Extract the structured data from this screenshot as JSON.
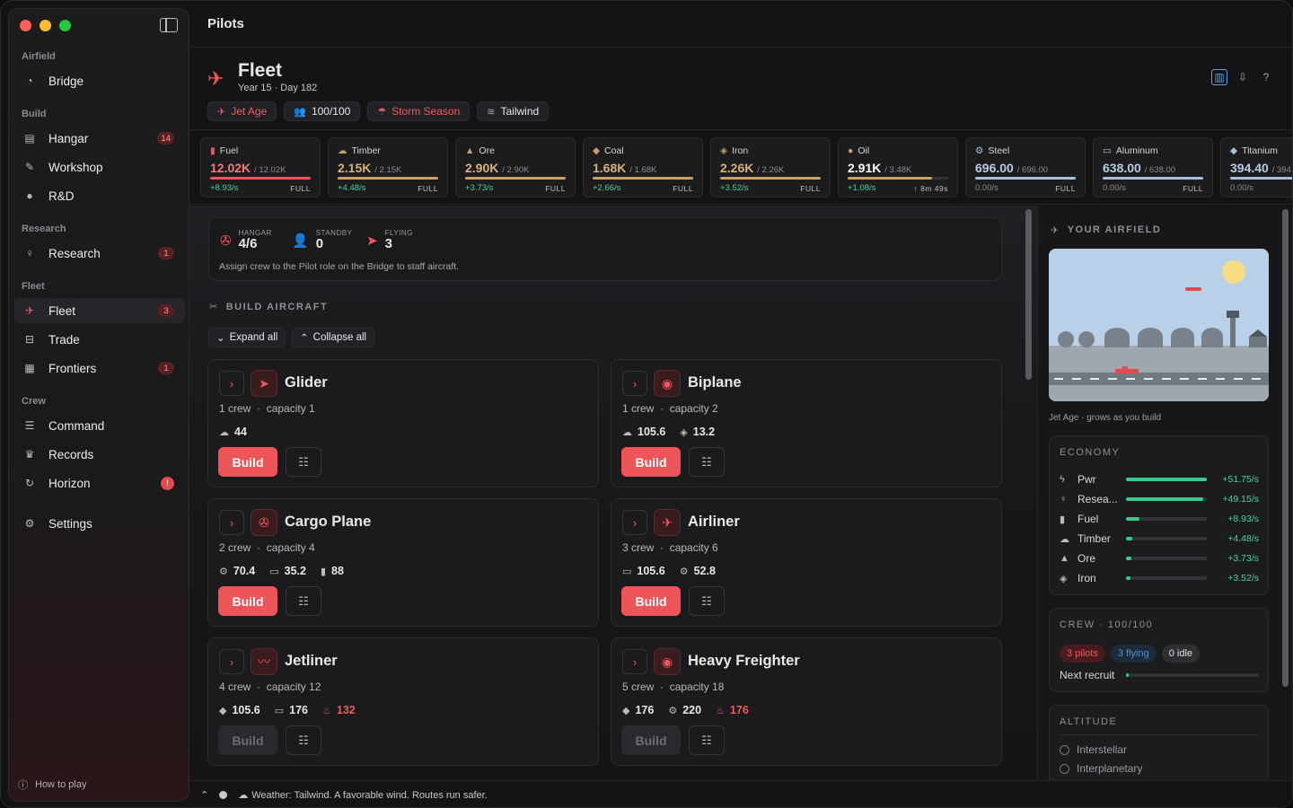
{
  "window": {
    "title": "Pilots"
  },
  "sidebar": {
    "sections": [
      {
        "label": "Airfield",
        "items": [
          {
            "label": "Bridge",
            "icon": "gauge-icon"
          }
        ]
      },
      {
        "label": "Build",
        "items": [
          {
            "label": "Hangar",
            "icon": "hangar-icon",
            "badge": "14"
          },
          {
            "label": "Workshop",
            "icon": "wrench-icon"
          },
          {
            "label": "R&D",
            "icon": "flask-icon"
          }
        ]
      },
      {
        "label": "Research",
        "items": [
          {
            "label": "Research",
            "icon": "bulb-icon",
            "badge": "1"
          }
        ]
      },
      {
        "label": "Fleet",
        "items": [
          {
            "label": "Fleet",
            "icon": "plane-icon",
            "badge": "3"
          },
          {
            "label": "Trade",
            "icon": "cart-icon"
          },
          {
            "label": "Frontiers",
            "icon": "map-icon",
            "badge": "1"
          }
        ]
      },
      {
        "label": "Crew",
        "items": [
          {
            "label": "Command",
            "icon": "sliders-icon"
          },
          {
            "label": "Records",
            "icon": "trophy-icon"
          },
          {
            "label": "Horizon",
            "icon": "refresh-icon",
            "badge": "!"
          }
        ]
      }
    ],
    "settings": "Settings",
    "how_to_play": "How to play"
  },
  "header": {
    "title": "Fleet",
    "subtitle": "Year 15 · Day 182",
    "chips": [
      "Jet Age",
      "100/100",
      "Storm Season",
      "Tailwind"
    ]
  },
  "resources": [
    {
      "name": "Fuel",
      "value": "12.02K",
      "max": "/ 12.02K",
      "rate": "+8.93/s",
      "status": "FULL",
      "fill": 1.0,
      "color": "#ee5558",
      "value_color": "#f07a7c"
    },
    {
      "name": "Timber",
      "value": "2.15K",
      "max": "/ 2.15K",
      "rate": "+4.48/s",
      "status": "FULL",
      "fill": 1.0,
      "color": "#c9a06a",
      "value_color": "#d7b07a"
    },
    {
      "name": "Ore",
      "value": "2.90K",
      "max": "/ 2.90K",
      "rate": "+3.73/s",
      "status": "FULL",
      "fill": 1.0,
      "color": "#c9a06a",
      "value_color": "#d7b07a"
    },
    {
      "name": "Coal",
      "value": "1.68K",
      "max": "/ 1.68K",
      "rate": "+2.66/s",
      "status": "FULL",
      "fill": 1.0,
      "color": "#c9a06a",
      "value_color": "#d7b07a"
    },
    {
      "name": "Iron",
      "value": "2.26K",
      "max": "/ 2.26K",
      "rate": "+3.52/s",
      "status": "FULL",
      "fill": 1.0,
      "color": "#c9a06a",
      "value_color": "#d7b07a"
    },
    {
      "name": "Oil",
      "value": "2.91K",
      "max": "/ 3.48K",
      "rate": "+1.08/s",
      "status": "↑ 8m 49s",
      "fill": 0.84,
      "color": "#c9a06a",
      "value_color": "#ffffff"
    },
    {
      "name": "Steel",
      "value": "696.00",
      "max": "/ 696.00",
      "rate": "0.00/s",
      "status": "FULL",
      "fill": 1.0,
      "color": "#a8c0dc",
      "value_color": "#b8cce4"
    },
    {
      "name": "Aluminum",
      "value": "638.00",
      "max": "/ 638.00",
      "rate": "0.00/s",
      "status": "FULL",
      "fill": 1.0,
      "color": "#a8c0dc",
      "value_color": "#b8cce4"
    },
    {
      "name": "Titanium",
      "value": "394.40",
      "max": "/ 394.40",
      "rate": "0.00/s",
      "status": "FULL",
      "fill": 1.0,
      "color": "#a8c0dc",
      "value_color": "#b8cce4"
    }
  ],
  "summary": {
    "hangar_label": "HANGAR",
    "hangar_value": "4/6",
    "standby_label": "STANDBY",
    "standby_value": "0",
    "flying_label": "FLYING",
    "flying_value": "3",
    "note": "Assign crew to the Pilot role on the Bridge to staff aircraft."
  },
  "build": {
    "heading": "BUILD AIRCRAFT",
    "expand_all": "Expand all",
    "collapse_all": "Collapse all",
    "build_label": "Build",
    "aircraft": [
      {
        "name": "Glider",
        "crew": "1 crew",
        "capacity": "capacity 1",
        "costs": [
          {
            "icon": "timber-icon",
            "value": "44"
          }
        ],
        "enabled": true
      },
      {
        "name": "Biplane",
        "crew": "1 crew",
        "capacity": "capacity 2",
        "costs": [
          {
            "icon": "timber-icon",
            "value": "105.6"
          },
          {
            "icon": "iron-icon",
            "value": "13.2"
          }
        ],
        "enabled": true
      },
      {
        "name": "Cargo Plane",
        "crew": "2 crew",
        "capacity": "capacity 4",
        "costs": [
          {
            "icon": "steel-icon",
            "value": "70.4"
          },
          {
            "icon": "aluminum-icon",
            "value": "35.2"
          },
          {
            "icon": "fuel-icon",
            "value": "88"
          }
        ],
        "enabled": true
      },
      {
        "name": "Airliner",
        "crew": "3 crew",
        "capacity": "capacity 6",
        "costs": [
          {
            "icon": "aluminum-icon",
            "value": "105.6"
          },
          {
            "icon": "steel-icon",
            "value": "52.8"
          }
        ],
        "enabled": true
      },
      {
        "name": "Jetliner",
        "crew": "4 crew",
        "capacity": "capacity 12",
        "costs": [
          {
            "icon": "titanium-icon",
            "value": "105.6"
          },
          {
            "icon": "aluminum-icon",
            "value": "176"
          },
          {
            "icon": "flame-icon",
            "value": "132",
            "short": true
          }
        ],
        "enabled": false
      },
      {
        "name": "Heavy Freighter",
        "crew": "5 crew",
        "capacity": "capacity 18",
        "costs": [
          {
            "icon": "titanium-icon",
            "value": "176"
          },
          {
            "icon": "steel-icon",
            "value": "220"
          },
          {
            "icon": "flame-icon",
            "value": "176",
            "short": true
          }
        ],
        "enabled": false
      }
    ]
  },
  "airfield": {
    "heading": "YOUR AIRFIELD",
    "caption": "Jet Age · grows as you build"
  },
  "economy": {
    "heading": "ECONOMY",
    "rows": [
      {
        "icon": "bolt-icon",
        "name": "Pwr",
        "rate": "+51.75/s",
        "level": 1.0
      },
      {
        "icon": "bulb-icon",
        "name": "Resea...",
        "rate": "+49.15/s",
        "level": 0.95
      },
      {
        "icon": "fuel-icon",
        "name": "Fuel",
        "rate": "+8.93/s",
        "level": 0.17
      },
      {
        "icon": "timber-icon",
        "name": "Timber",
        "rate": "+4.48/s",
        "level": 0.08
      },
      {
        "icon": "ore-icon",
        "name": "Ore",
        "rate": "+3.73/s",
        "level": 0.07
      },
      {
        "icon": "iron-icon",
        "name": "Iron",
        "rate": "+3.52/s",
        "level": 0.06
      }
    ]
  },
  "crew": {
    "heading": "CREW · 100/100",
    "pills": [
      "3 pilots",
      "3 flying",
      "0 idle"
    ],
    "next_recruit": "Next recruit",
    "recruit_progress": 0.01
  },
  "altitude": {
    "heading": "ALTITUDE",
    "options": [
      "Interstellar",
      "Interplanetary"
    ]
  },
  "status": {
    "message": "Weather: Tailwind. A favorable wind. Routes run safer."
  }
}
